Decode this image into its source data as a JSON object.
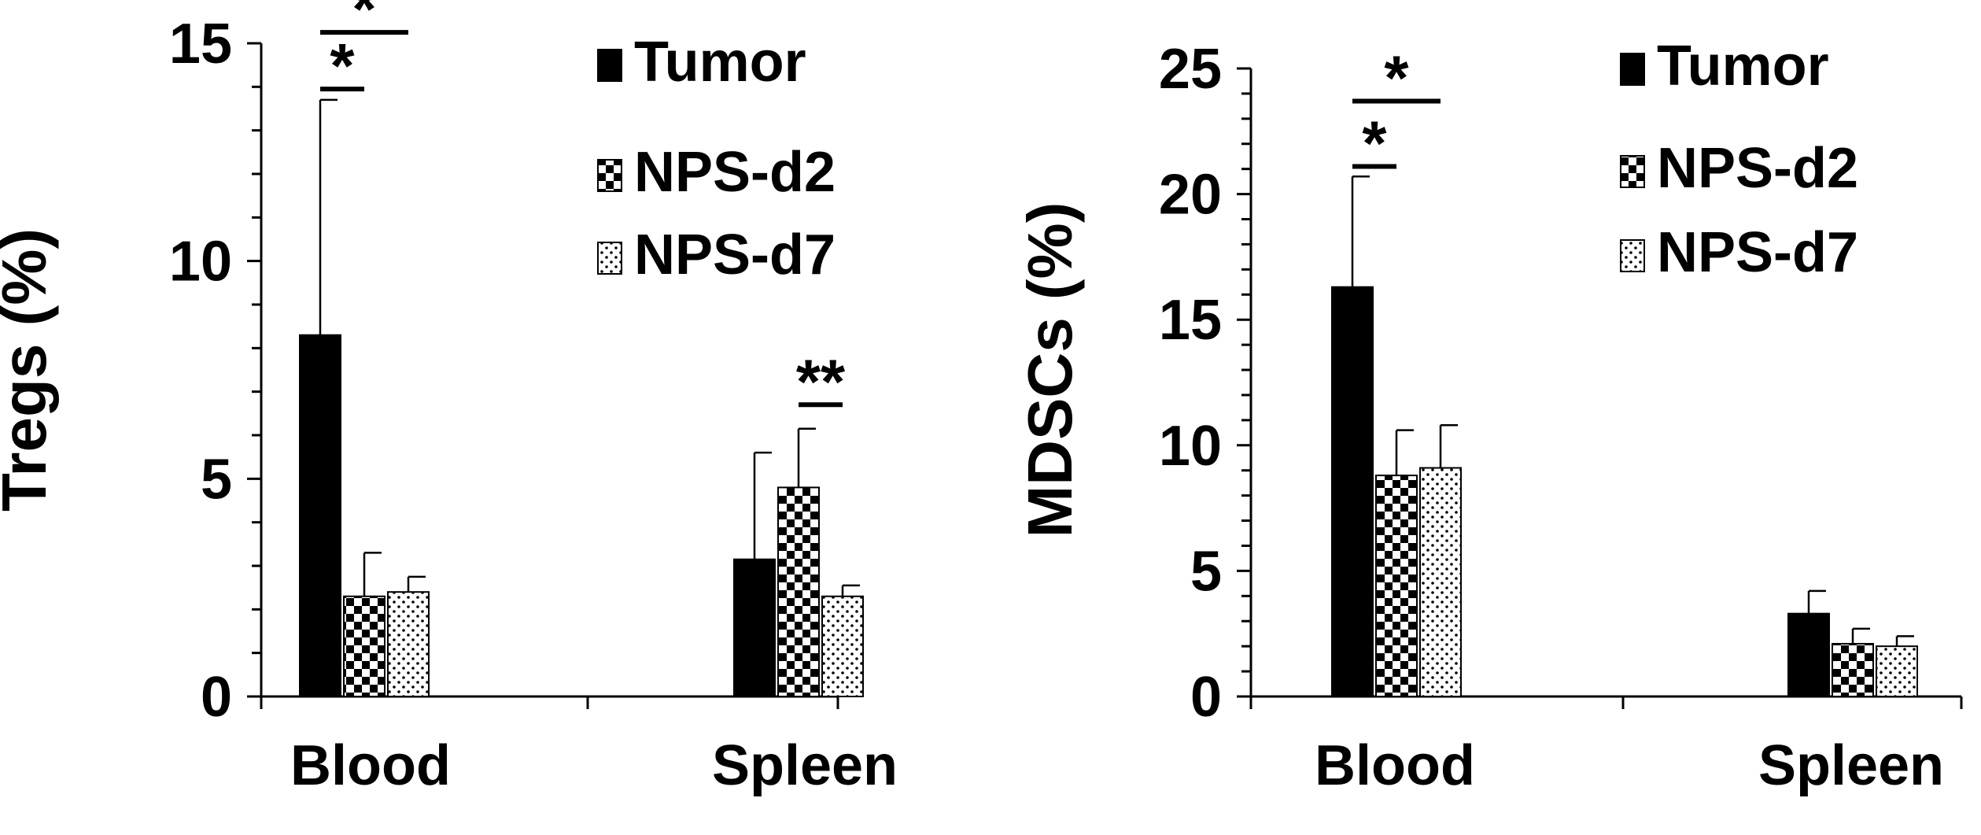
{
  "colors": {
    "tumor": "#000000",
    "ink": "#000000",
    "background": "#ffffff"
  },
  "chart_data": [
    {
      "type": "bar",
      "ylabel": "Tregs (%)",
      "categories": [
        "Blood",
        "Spleen"
      ],
      "ylim": [
        0,
        15
      ],
      "yticks": [
        "0",
        "5",
        "10",
        "15"
      ],
      "legend_position": "top-right",
      "series": [
        {
          "name": "Tumor",
          "pattern": "solid",
          "values": [
            8.3,
            3.15
          ],
          "errors": [
            5.4,
            2.45
          ]
        },
        {
          "name": "NPS-d2",
          "pattern": "checker",
          "values": [
            2.3,
            4.8
          ],
          "errors": [
            1.0,
            1.35
          ]
        },
        {
          "name": "NPS-d7",
          "pattern": "dots",
          "values": [
            2.4,
            2.3
          ],
          "errors": [
            0.35,
            0.25
          ]
        }
      ],
      "annotations": [
        {
          "label": "*",
          "category": 0,
          "from": 0,
          "to": 1,
          "y": 13.95
        },
        {
          "label": "*",
          "category": 0,
          "from": 0,
          "to": 2,
          "y": 15.25
        },
        {
          "label": "**",
          "category": 1,
          "from": 1,
          "to": 2,
          "y": 6.7
        }
      ]
    },
    {
      "type": "bar",
      "ylabel": "MDSCs (%)",
      "categories": [
        "Blood",
        "Spleen"
      ],
      "ylim": [
        0,
        25
      ],
      "yticks": [
        "0",
        "5",
        "10",
        "15",
        "20",
        "25"
      ],
      "legend_position": "top-right",
      "series": [
        {
          "name": "Tumor",
          "pattern": "solid",
          "values": [
            16.3,
            3.3
          ],
          "errors": [
            4.4,
            0.9
          ]
        },
        {
          "name": "NPS-d2",
          "pattern": "checker",
          "values": [
            8.8,
            2.1
          ],
          "errors": [
            1.8,
            0.6
          ]
        },
        {
          "name": "NPS-d7",
          "pattern": "dots",
          "values": [
            9.1,
            2.0
          ],
          "errors": [
            1.7,
            0.4
          ]
        }
      ],
      "annotations": [
        {
          "label": "*",
          "category": 0,
          "from": 0,
          "to": 1,
          "y": 21.1
        },
        {
          "label": "*",
          "category": 0,
          "from": 0,
          "to": 2,
          "y": 23.7
        }
      ]
    }
  ]
}
